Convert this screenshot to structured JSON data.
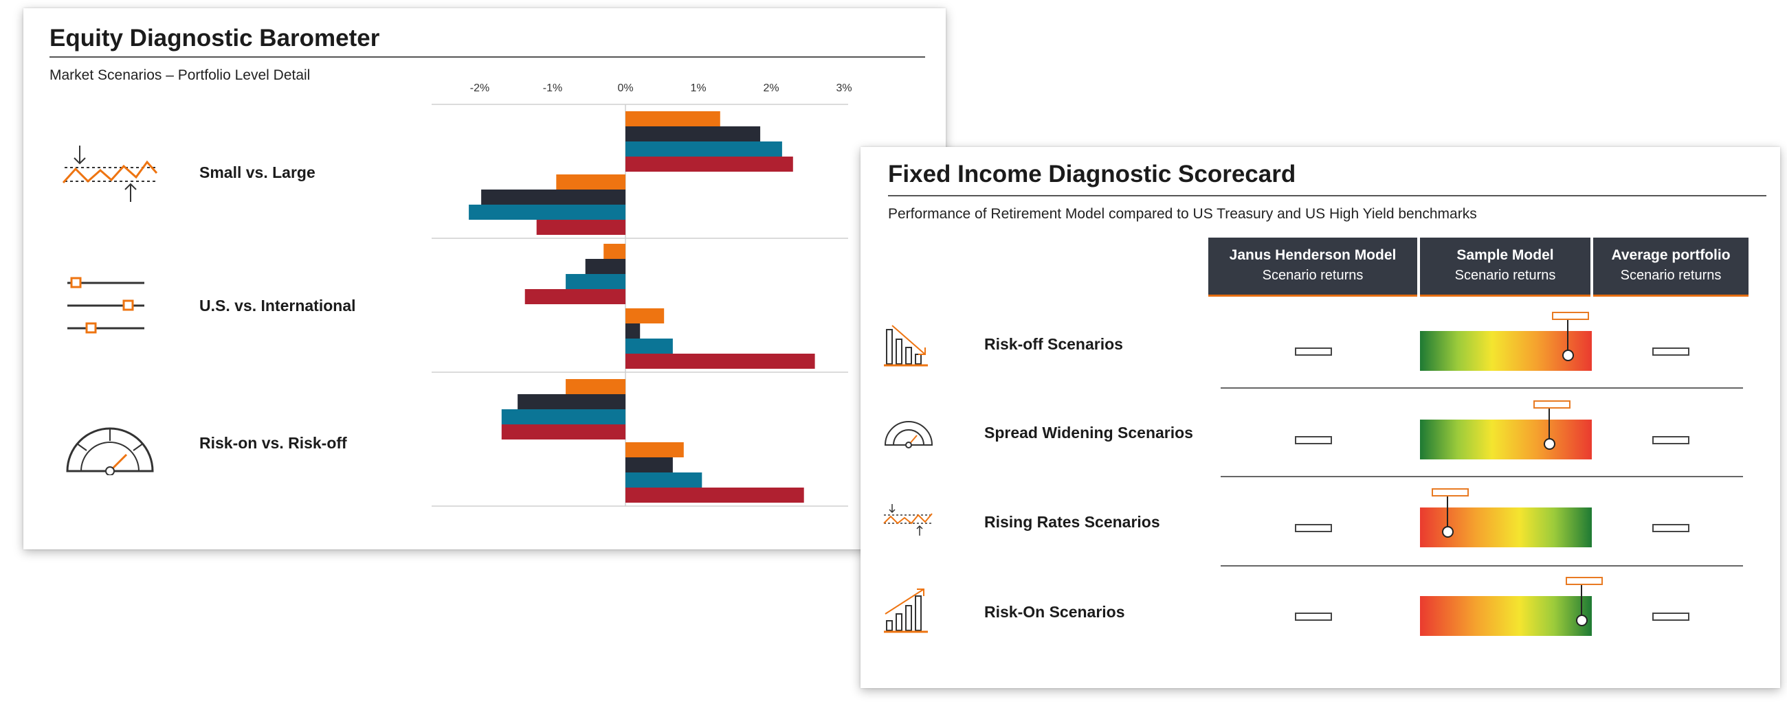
{
  "equity": {
    "title": "Equity Diagnostic Barometer",
    "subtitle": "Market Scenarios – Portfolio Level Detail",
    "rows": [
      {
        "label": "Small vs. Large",
        "icon": "market-swing-icon"
      },
      {
        "label": "U.S. vs. International",
        "icon": "slider-controls-icon"
      },
      {
        "label": "Risk-on vs. Risk-off",
        "icon": "gauge-icon"
      }
    ]
  },
  "chart_data": {
    "type": "bar",
    "orientation": "horizontal",
    "x_ticks": [
      "-2%",
      "-1%",
      "0%",
      "1%",
      "2%",
      "3%"
    ],
    "xlim": [
      -2,
      3
    ],
    "grid": false,
    "legend": "none",
    "colors": [
      "#ee7411",
      "#272b36",
      "#0b7596",
      "#b02030"
    ],
    "groups": [
      {
        "row": "Small vs. Large",
        "part": 1,
        "values": [
          1.3,
          1.85,
          2.15,
          2.3
        ]
      },
      {
        "row": "Small vs. Large",
        "part": 2,
        "values": [
          -0.95,
          -1.98,
          -2.15,
          -1.22
        ]
      },
      {
        "row": "U.S. vs. International",
        "part": 1,
        "values": [
          -0.3,
          -0.55,
          -0.82,
          -1.38
        ]
      },
      {
        "row": "U.S. vs. International",
        "part": 2,
        "values": [
          0.53,
          0.2,
          0.65,
          2.6
        ]
      },
      {
        "row": "Risk-on vs. Risk-off",
        "part": 1,
        "values": [
          -0.82,
          -1.48,
          -1.7,
          -1.7
        ]
      },
      {
        "row": "Risk-on vs. Risk-off",
        "part": 2,
        "values": [
          0.8,
          0.65,
          1.05,
          2.45
        ]
      }
    ]
  },
  "fixed_income": {
    "title": "Fixed Income Diagnostic Scorecard",
    "subtitle": "Performance of Retirement Model compared to US Treasury and US High Yield benchmarks",
    "columns": [
      {
        "line1": "Janus Henderson Model",
        "line2": "Scenario returns"
      },
      {
        "line1": "Sample Model",
        "line2": "Scenario returns"
      },
      {
        "line1": "Average portfolio",
        "line2": "Scenario returns"
      }
    ],
    "rows": [
      {
        "label": "Risk-off Scenarios",
        "icon": "declining-bars-icon",
        "gradient": "green-to-red",
        "marker": 0.86
      },
      {
        "label": "Spread Widening Scenarios",
        "icon": "gauge-icon",
        "gradient": "green-to-red",
        "marker": 0.75
      },
      {
        "label": "Rising Rates Scenarios",
        "icon": "market-swing-icon",
        "gradient": "red-to-green",
        "marker": 0.16
      },
      {
        "label": "Risk-On Scenarios",
        "icon": "rising-bars-icon",
        "gradient": "red-to-green",
        "marker": 0.94
      }
    ]
  }
}
